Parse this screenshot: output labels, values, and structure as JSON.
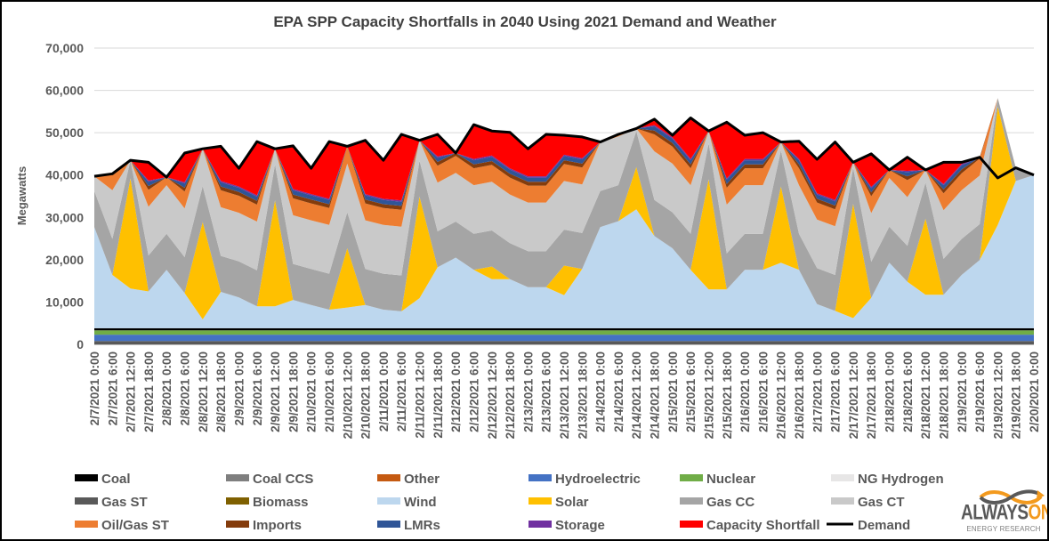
{
  "chart_data": {
    "type": "area",
    "stacked": true,
    "title": "EPA SPP Capacity Shortfalls in 2040 Using 2021 Demand and Weather",
    "xlabel": "",
    "ylabel": "Megawatts",
    "ylim": [
      0,
      70000
    ],
    "yticks": [
      0,
      10000,
      20000,
      30000,
      40000,
      50000,
      60000,
      70000
    ],
    "ytick_labels": [
      "0",
      "10,000",
      "20,000",
      "30,000",
      "40,000",
      "50,000",
      "60,000",
      "70,000"
    ],
    "grid": true,
    "legend_position": "bottom",
    "value_units": "thousand MW",
    "x": [
      "2/7/2021 0:00",
      "2/7/2021 6:00",
      "2/7/2021 12:00",
      "2/7/2021 18:00",
      "2/8/2021 0:00",
      "2/8/2021 6:00",
      "2/8/2021 12:00",
      "2/8/2021 18:00",
      "2/9/2021 0:00",
      "2/9/2021 6:00",
      "2/9/2021 12:00",
      "2/9/2021 18:00",
      "2/10/2021 0:00",
      "2/10/2021 6:00",
      "2/10/2021 12:00",
      "2/10/2021 18:00",
      "2/11/2021 0:00",
      "2/11/2021 6:00",
      "2/11/2021 12:00",
      "2/11/2021 18:00",
      "2/12/2021 0:00",
      "2/12/2021 6:00",
      "2/12/2021 12:00",
      "2/12/2021 18:00",
      "2/13/2021 0:00",
      "2/13/2021 6:00",
      "2/13/2021 12:00",
      "2/13/2021 18:00",
      "2/14/2021 0:00",
      "2/14/2021 6:00",
      "2/14/2021 12:00",
      "2/14/2021 18:00",
      "2/15/2021 0:00",
      "2/15/2021 6:00",
      "2/15/2021 12:00",
      "2/15/2021 18:00",
      "2/16/2021 0:00",
      "2/16/2021 6:00",
      "2/16/2021 12:00",
      "2/16/2021 18:00",
      "2/17/2021 0:00",
      "2/17/2021 6:00",
      "2/17/2021 12:00",
      "2/17/2021 18:00",
      "2/18/2021 0:00",
      "2/18/2021 6:00",
      "2/18/2021 12:00",
      "2/18/2021 18:00",
      "2/19/2021 0:00",
      "2/19/2021 6:00",
      "2/19/2021 12:00",
      "2/19/2021 18:00",
      "2/20/2021 0:00"
    ],
    "series": [
      {
        "name": "Gas ST",
        "color": "#595959",
        "constant": 0.8
      },
      {
        "name": "Hydroelectric",
        "color": "#4472c4",
        "constant": 1.5
      },
      {
        "name": "Nuclear",
        "color": "#70ad47",
        "constant": 1.0
      },
      {
        "name": "Coal",
        "color": "#000000",
        "constant": 0.5
      },
      {
        "name": "Coal CCS",
        "color": "#7f7f7f",
        "constant": 0
      },
      {
        "name": "Other",
        "color": "#c55a11",
        "constant": 0
      },
      {
        "name": "Biomass",
        "color": "#7f6000",
        "constant": 0
      },
      {
        "name": "NG Hydrogen",
        "color": "#e7e6e6",
        "constant": 0
      },
      {
        "name": "Wind",
        "color": "#bdd7ee",
        "values": [
          23.9,
          12.6,
          9.4,
          8.7,
          13.8,
          8.3,
          2.1,
          8.6,
          7.3,
          5.2,
          5.2,
          6.7,
          5.5,
          4.4,
          4.9,
          5.5,
          4.4,
          4.0,
          7.1,
          14.4,
          16.7,
          13.8,
          11.6,
          11.6,
          9.7,
          9.7,
          7.8,
          14.0,
          23.9,
          25.3,
          28.1,
          21.8,
          18.9,
          13.8,
          9.2,
          9.2,
          13.8,
          13.8,
          15.5,
          13.8,
          5.7,
          4.1,
          2.4,
          7.2,
          15.5,
          11.0,
          7.9,
          7.9,
          12.6,
          16.1,
          24.4,
          34.8,
          36.2
        ]
      },
      {
        "name": "Solar",
        "color": "#ffc000",
        "values": [
          0,
          0,
          26,
          0,
          0,
          0,
          23,
          0,
          0,
          0,
          25,
          0,
          0,
          0,
          14,
          0,
          0,
          0,
          24,
          0,
          0,
          0,
          3,
          0,
          0,
          0,
          7,
          0,
          0,
          0,
          10,
          0,
          0,
          0,
          26,
          0,
          0,
          0,
          18,
          0,
          0,
          0,
          27,
          0,
          0,
          0,
          18,
          0,
          0,
          0,
          28,
          0,
          0
        ]
      },
      {
        "name": "Gas CC",
        "color": "#a5a5a5",
        "values": [
          8.5,
          8.5,
          4.3,
          8.5,
          8.5,
          8.5,
          8.5,
          8.5,
          8.5,
          8.5,
          8.5,
          8.5,
          8.5,
          8.5,
          8.5,
          8.5,
          8.5,
          8.5,
          8.5,
          8.5,
          8.5,
          8.5,
          8.5,
          8.5,
          8.5,
          8.5,
          8.5,
          8.5,
          8.5,
          8.5,
          8.5,
          8.5,
          8.5,
          8.5,
          8.5,
          8.5,
          8.5,
          8.5,
          8.5,
          8.5,
          8.5,
          8.5,
          8.5,
          8.5,
          8.5,
          8.5,
          8.5,
          8.5,
          8.5,
          8.5,
          2,
          3.1,
          0
        ]
      },
      {
        "name": "Gas CT",
        "color": "#c9c9c9",
        "values": [
          3.5,
          11.5,
          0,
          11.5,
          11.5,
          11.5,
          8.8,
          11.5,
          11.5,
          11.5,
          3.7,
          11.5,
          11.5,
          11.5,
          11.5,
          11.5,
          11.5,
          11.5,
          4.8,
          11.5,
          11.5,
          11.5,
          11.5,
          11.5,
          11.5,
          11.5,
          11.5,
          11.5,
          11.5,
          11.5,
          0.6,
          11.5,
          11.5,
          11.5,
          2.9,
          11.5,
          11.5,
          11.5,
          2.0,
          11.5,
          11.5,
          11.5,
          1.3,
          11.5,
          11.5,
          11.5,
          3.0,
          11.5,
          11.5,
          11.5,
          0,
          0,
          0
        ]
      },
      {
        "name": "Oil/Gas ST",
        "color": "#ed7d31",
        "values": [
          0,
          3.9,
          0,
          4,
          1.9,
          4,
          0,
          4,
          4,
          4,
          0,
          4,
          4,
          4,
          4,
          4,
          4,
          4,
          0,
          4,
          4,
          4,
          4,
          4,
          4,
          4,
          4,
          4,
          0.1,
          0.5,
          0,
          4,
          4,
          4,
          0,
          4,
          4,
          4,
          0,
          4,
          4,
          4,
          0,
          4,
          1.9,
          4,
          0,
          4,
          4,
          4,
          0,
          0,
          0
        ]
      },
      {
        "name": "Imports",
        "color": "#843c0c",
        "values": [
          0,
          0,
          0,
          0.9,
          0,
          0.9,
          0,
          0.9,
          0.9,
          0.9,
          0,
          0.9,
          0.9,
          0.9,
          0.1,
          0.9,
          0.9,
          0.9,
          0,
          0.9,
          0.7,
          0.9,
          0.9,
          0.9,
          0.9,
          0.9,
          0.9,
          0.9,
          0,
          0,
          0,
          0.9,
          0.9,
          0.9,
          0,
          0.9,
          0.9,
          0.9,
          0,
          0.9,
          0.9,
          0.9,
          0,
          0.9,
          0,
          0.9,
          0,
          0.9,
          0.9,
          0.3,
          0,
          0,
          0
        ]
      },
      {
        "name": "LMRs",
        "color": "#2f5597",
        "values": [
          0,
          0,
          0,
          1,
          0,
          1,
          0,
          1,
          1,
          1,
          0,
          1,
          1,
          1,
          0,
          1,
          1,
          1,
          0,
          1,
          0,
          1,
          1,
          1,
          1,
          1,
          1,
          1,
          0,
          0,
          0,
          1,
          1,
          1,
          0,
          1,
          1,
          1,
          0,
          1,
          1,
          1,
          0,
          1,
          0,
          1,
          0,
          1,
          1,
          0,
          0,
          0,
          0
        ]
      },
      {
        "name": "Storage",
        "color": "#7030a0",
        "values": [
          0,
          0,
          0,
          0.3,
          0,
          0.3,
          0,
          0.3,
          0.3,
          0.3,
          0,
          0.3,
          0.3,
          0.3,
          0,
          0.3,
          0.3,
          0.3,
          0,
          0.3,
          0,
          0.3,
          0.3,
          0.3,
          0.3,
          0.3,
          0.3,
          0.3,
          0,
          0,
          0,
          0.3,
          0.3,
          0.3,
          0,
          0.3,
          0.3,
          0.3,
          0,
          0.3,
          0.3,
          0.3,
          0,
          0.3,
          0,
          0.3,
          0,
          0.3,
          0.3,
          0,
          0,
          0,
          0
        ]
      },
      {
        "name": "Capacity Shortfall",
        "color": "#ff0000",
        "values": [
          0,
          0,
          0,
          4.3,
          0,
          6.9,
          0,
          8.2,
          4.3,
          12.7,
          0,
          10.2,
          6.1,
          13.5,
          0,
          12.7,
          9.1,
          15.6,
          0,
          5.2,
          0,
          8.1,
          5.8,
          8.5,
          6.5,
          9.9,
          4.6,
          5.0,
          0,
          0,
          0,
          1.4,
          0.5,
          9.7,
          0,
          13.3,
          5.6,
          6.2,
          0,
          4.2,
          8.0,
          13.7,
          0,
          7.8,
          0,
          3.2,
          0,
          5.1,
          0.4,
          0,
          0,
          0,
          0
        ]
      }
    ],
    "demand": {
      "name": "Demand",
      "color": "#000000",
      "values": [
        39.7,
        40.3,
        43.5,
        43,
        39.5,
        45.2,
        46.2,
        46.8,
        41.6,
        47.9,
        46.2,
        46.9,
        41.6,
        47.9,
        46.8,
        48.2,
        43.5,
        49.6,
        48.2,
        49.6,
        45.2,
        51.9,
        50.4,
        50.1,
        46.2,
        49.6,
        49.4,
        49,
        47.8,
        49.6,
        51,
        53.2,
        49.4,
        53.5,
        50.4,
        52.5,
        49.4,
        50,
        47.8,
        48,
        43.7,
        47.8,
        43,
        45,
        41.2,
        44.2,
        41.2,
        43,
        43,
        44.2,
        39.3,
        41.7,
        40
      ]
    },
    "legend": [
      {
        "name": "Coal",
        "color": "#000000",
        "kind": "area"
      },
      {
        "name": "Coal CCS",
        "color": "#7f7f7f",
        "kind": "area"
      },
      {
        "name": "Other",
        "color": "#c55a11",
        "kind": "area"
      },
      {
        "name": "Hydroelectric",
        "color": "#4472c4",
        "kind": "area"
      },
      {
        "name": "Nuclear",
        "color": "#70ad47",
        "kind": "area"
      },
      {
        "name": "NG Hydrogen",
        "color": "#e7e6e6",
        "kind": "area"
      },
      {
        "name": "Gas ST",
        "color": "#595959",
        "kind": "area"
      },
      {
        "name": "Biomass",
        "color": "#7f6000",
        "kind": "area"
      },
      {
        "name": "Wind",
        "color": "#bdd7ee",
        "kind": "area"
      },
      {
        "name": "Solar",
        "color": "#ffc000",
        "kind": "area"
      },
      {
        "name": "Gas CC",
        "color": "#a5a5a5",
        "kind": "area"
      },
      {
        "name": "Gas CT",
        "color": "#c9c9c9",
        "kind": "area"
      },
      {
        "name": "Oil/Gas ST",
        "color": "#ed7d31",
        "kind": "area"
      },
      {
        "name": "Imports",
        "color": "#843c0c",
        "kind": "area"
      },
      {
        "name": "LMRs",
        "color": "#2f5597",
        "kind": "area"
      },
      {
        "name": "Storage",
        "color": "#7030a0",
        "kind": "area"
      },
      {
        "name": "Capacity Shortfall",
        "color": "#ff0000",
        "kind": "area"
      },
      {
        "name": "Demand",
        "color": "#000000",
        "kind": "line"
      }
    ]
  },
  "logo": {
    "brand_main": "ALWAYS",
    "brand_accent": "ON",
    "tagline": "ENERGY RESEARCH"
  }
}
